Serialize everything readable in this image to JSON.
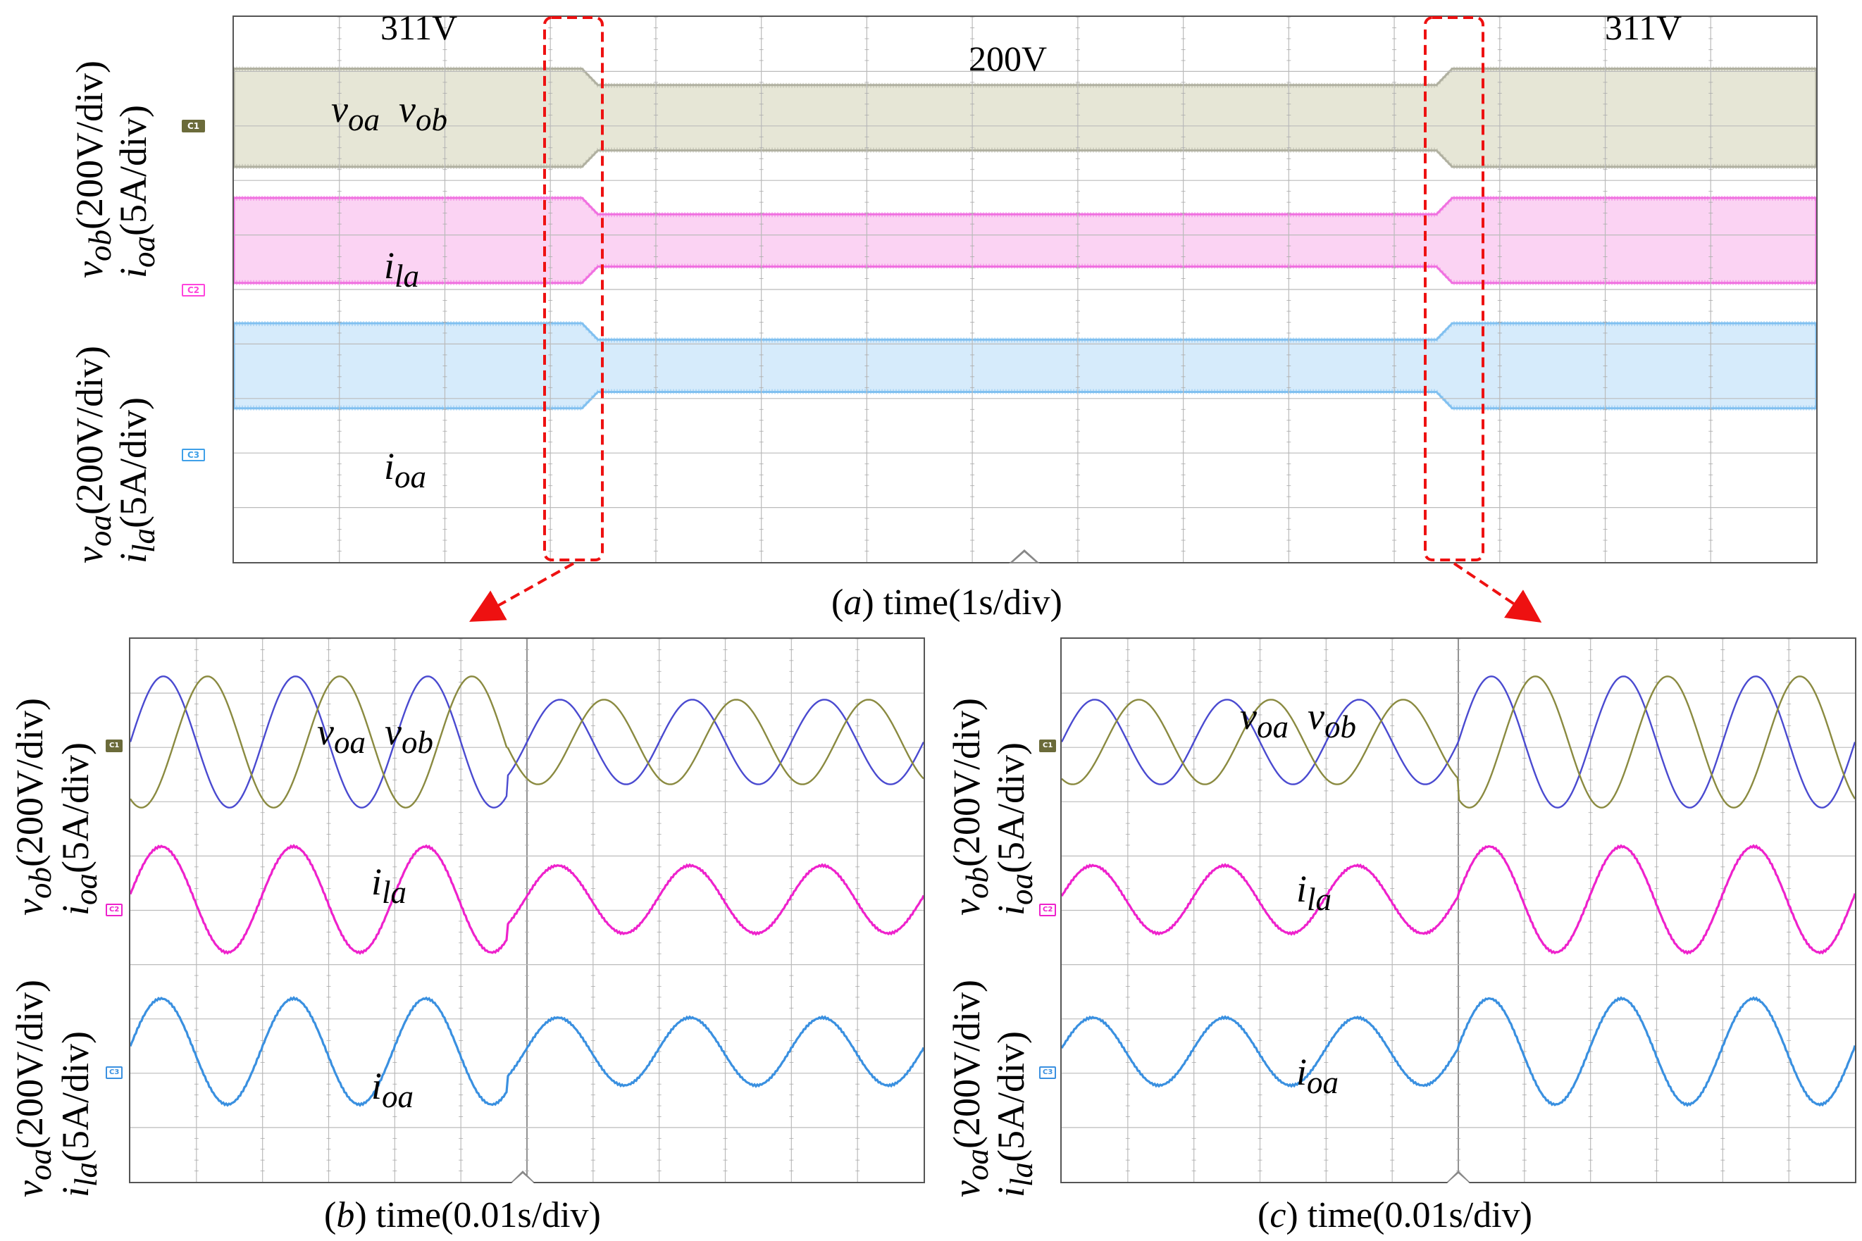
{
  "chart_data": [
    {
      "id": "a",
      "type": "line",
      "title": "(a) time(1s/div)",
      "caption_letter": "a",
      "caption_rest": "time(1s/div)",
      "xlabel": "time(1s/div)",
      "ylabel_top": "v_ob(200V/div) i_oa(5A/div)",
      "ylabel_bottom": "v_oa(200V/div) i_la(5A/div)",
      "annotations": [
        "311V",
        "200V",
        "311V"
      ],
      "series": [
        {
          "name": "v_oa v_ob",
          "channel": "C1",
          "color": "#8a8a55",
          "envelope_divs_by_segment": [
            1.5,
            1.0,
            1.5
          ]
        },
        {
          "name": "i_la",
          "channel": "C2",
          "color": "#ff44dd",
          "envelope_divs_by_segment": [
            1.3,
            0.8,
            1.3
          ]
        },
        {
          "name": "i_oa",
          "channel": "C3",
          "color": "#3fa0e8",
          "envelope_divs_by_segment": [
            1.3,
            0.8,
            1.3
          ]
        }
      ],
      "transition_times_div": [
        3.3,
        11.4
      ],
      "x_divisions": 15,
      "y_divisions": 10
    },
    {
      "id": "b",
      "type": "line",
      "title": "(b) time(0.01s/div)",
      "caption_letter": "b",
      "caption_rest": "time(0.01s/div)",
      "xlabel": "time(0.01s/div)",
      "transition_time_div": 5.7,
      "x_divisions": 12,
      "y_divisions": 10,
      "series": [
        {
          "name": "v_oa",
          "channel": "C1",
          "color": "#4a4ad0",
          "amplitude_before": 1.55,
          "amplitude_after": 1.0
        },
        {
          "name": "v_ob",
          "channel": "C1",
          "color": "#8a8a40",
          "amplitude_before": 1.55,
          "amplitude_after": 1.0
        },
        {
          "name": "i_la",
          "channel": "C2",
          "color": "#ee22cc",
          "amplitude_before": 1.25,
          "amplitude_after": 0.8
        },
        {
          "name": "i_oa",
          "channel": "C3",
          "color": "#3a90e0",
          "amplitude_before": 1.25,
          "amplitude_after": 0.8
        }
      ]
    },
    {
      "id": "c",
      "type": "line",
      "title": "(c) time(0.01s/div)",
      "caption_letter": "c",
      "caption_rest": "time(0.01s/div)",
      "xlabel": "time(0.01s/div)",
      "transition_time_div": 6.0,
      "x_divisions": 12,
      "y_divisions": 10,
      "series": [
        {
          "name": "v_oa",
          "channel": "C1",
          "color": "#4a4ad0",
          "amplitude_before": 1.0,
          "amplitude_after": 1.55
        },
        {
          "name": "v_ob",
          "channel": "C1",
          "color": "#8a8a40",
          "amplitude_before": 1.0,
          "amplitude_after": 1.55
        },
        {
          "name": "i_la",
          "channel": "C2",
          "color": "#ee22cc",
          "amplitude_before": 0.8,
          "amplitude_after": 1.25
        },
        {
          "name": "i_oa",
          "channel": "C3",
          "color": "#3a90e0",
          "amplitude_before": 0.8,
          "amplitude_after": 1.25
        }
      ]
    }
  ],
  "labels": {
    "voa": "oa",
    "vob": "ob",
    "ila": "la",
    "ioa": "oa",
    "v311_left": "311V",
    "v200": "200V",
    "v311_right": "311V",
    "ylabel_top_a": "(200V/div)",
    "ylabel_top_b": "(5A/div)",
    "ylabel_bot_a": "(200V/div)",
    "ylabel_bot_b": "(5A/div)"
  },
  "channel_tags": [
    "C1",
    "C2",
    "C3"
  ]
}
